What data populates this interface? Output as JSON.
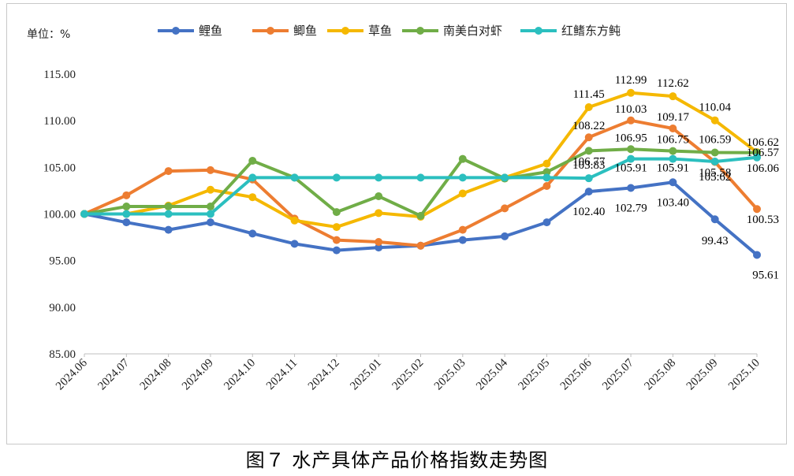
{
  "caption": "图７ 水产具体产品价格指数走势图",
  "unit_label": "单位：%",
  "chart_data": {
    "type": "line",
    "title": "",
    "xlabel": "",
    "ylabel": "单位：%",
    "ylim": [
      85,
      115
    ],
    "yticks": [
      "85.00",
      "90.00",
      "95.00",
      "100.00",
      "105.00",
      "110.00",
      "115.00"
    ],
    "grid": false,
    "legend_position": "top",
    "categories": [
      "2024.06",
      "2024.07",
      "2024.08",
      "2024.09",
      "2024.10",
      "2024.11",
      "2024.12",
      "2025.01",
      "2025.02",
      "2025.03",
      "2025.04",
      "2025.05",
      "2025.06",
      "2025.07",
      "2025.08",
      "2025.09",
      "2025.10"
    ],
    "series": [
      {
        "name": "鲤鱼",
        "color": "#4472C4",
        "values": [
          100.0,
          99.1,
          98.3,
          99.1,
          97.9,
          96.8,
          96.1,
          96.4,
          96.6,
          97.2,
          97.6,
          99.1,
          102.4,
          102.79,
          103.4,
          99.43,
          95.61
        ],
        "labels": {
          "12": "102.40",
          "13": "102.79",
          "14": "103.40",
          "15": "99.43",
          "16": "95.61"
        }
      },
      {
        "name": "鲫鱼",
        "color": "#ED7D31",
        "values": [
          100.0,
          102.0,
          104.6,
          104.7,
          103.7,
          99.5,
          97.2,
          97.0,
          96.6,
          98.3,
          100.6,
          103.0,
          108.22,
          110.03,
          109.17,
          105.58,
          100.53
        ],
        "labels": {
          "12": "108.22",
          "13": "110.03",
          "14": "109.17",
          "15": "105.58",
          "16": "100.53"
        }
      },
      {
        "name": "草鱼",
        "color": "#F5B800",
        "values": [
          100.0,
          100.0,
          100.9,
          102.6,
          101.8,
          99.3,
          98.6,
          100.1,
          99.7,
          102.2,
          103.9,
          105.4,
          111.45,
          112.99,
          112.62,
          110.04,
          106.62
        ],
        "labels": {
          "12": "111.45",
          "13": "112.99",
          "14": "112.62",
          "15": "110.04",
          "16": "106.62"
        }
      },
      {
        "name": "南美白对虾",
        "color": "#70AD47",
        "values": [
          100.0,
          100.8,
          100.8,
          100.8,
          105.7,
          103.9,
          100.2,
          101.9,
          99.8,
          105.9,
          103.8,
          104.5,
          106.77,
          106.95,
          106.75,
          106.59,
          106.57
        ],
        "labels": {
          "12": "106.77",
          "13": "106.95",
          "14": "106.75",
          "15": "106.59",
          "16": "106.57"
        }
      },
      {
        "name": "红鳍东方鲀",
        "color": "#2BBFBF",
        "values": [
          100.0,
          100.0,
          100.0,
          100.0,
          103.9,
          103.9,
          103.9,
          103.9,
          103.9,
          103.9,
          103.9,
          103.9,
          103.83,
          105.91,
          105.91,
          105.62,
          106.06
        ],
        "labels": {
          "12": "103.83",
          "13": "105.91",
          "14": "105.91",
          "15": "105.62",
          "16": "106.06"
        }
      }
    ]
  }
}
